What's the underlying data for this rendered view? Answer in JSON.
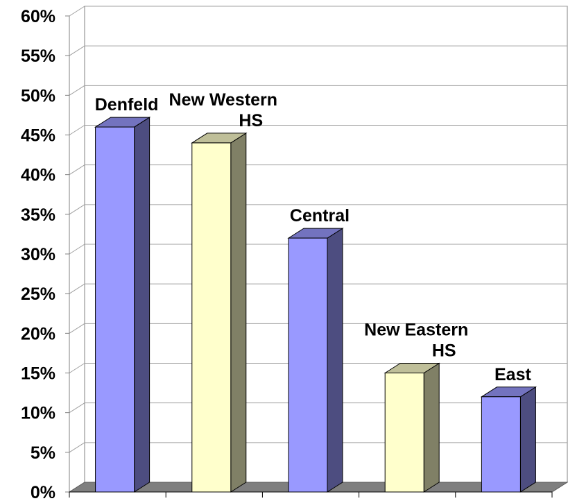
{
  "chart_data": {
    "type": "bar",
    "categories": [
      "Denfeld",
      "New Western HS",
      "Central",
      "New Eastern HS",
      "East"
    ],
    "label_lines": [
      [
        "Denfeld"
      ],
      [
        "New Western",
        "HS"
      ],
      [
        "Central"
      ],
      [
        "New Eastern",
        "HS"
      ],
      [
        "East"
      ]
    ],
    "values": [
      46,
      44,
      32,
      15,
      12
    ],
    "ylim": [
      0,
      60
    ],
    "yticks": [
      "0%",
      "5%",
      "10%",
      "15%",
      "20%",
      "25%",
      "30%",
      "35%",
      "40%",
      "45%",
      "50%",
      "55%",
      "60%"
    ],
    "grid": true,
    "bar_colors": [
      {
        "front": "#9999ff",
        "side": "#4d4d80",
        "top": "#7373bf"
      },
      {
        "front": "#ffffcc",
        "side": "#808066",
        "top": "#bfbf99"
      },
      {
        "front": "#9999ff",
        "side": "#4d4d80",
        "top": "#7373bf"
      },
      {
        "front": "#ffffcc",
        "side": "#808066",
        "top": "#bfbf99"
      },
      {
        "front": "#9999ff",
        "side": "#4d4d80",
        "top": "#7373bf"
      }
    ]
  }
}
